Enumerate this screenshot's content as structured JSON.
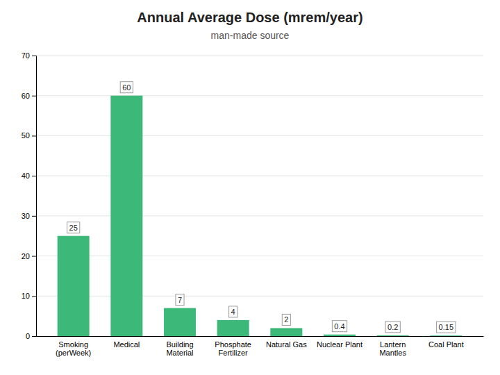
{
  "chart_data": {
    "type": "bar",
    "title": "Annual Average Dose (mrem/year)",
    "subtitle": "man-made source",
    "categories": [
      "Smoking\n(perWeek)",
      "Medical",
      "Building\nMaterial",
      "Phosphate\nFertilizer",
      "Natural Gas",
      "Nuclear Plant",
      "Lantern\nMantles",
      "Coal Plant"
    ],
    "values": [
      25,
      60,
      7,
      4,
      2,
      0.4,
      0.2,
      0.15
    ],
    "color": "#3cb878",
    "ylim": [
      0,
      70
    ],
    "yticks": [
      0,
      10,
      20,
      30,
      40,
      50,
      60,
      70
    ],
    "grid": true,
    "data_labels": true
  }
}
